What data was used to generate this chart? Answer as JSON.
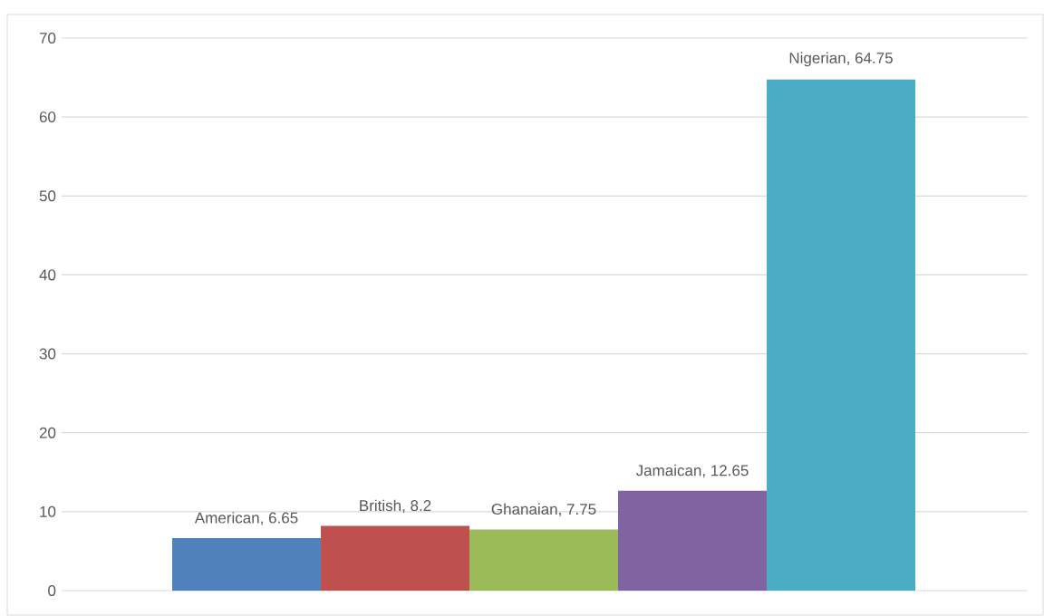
{
  "chart_data": {
    "type": "bar",
    "categories": [
      null,
      null,
      null,
      null,
      null
    ],
    "values": [
      6.65,
      8.2,
      7.75,
      12.65,
      64.75
    ],
    "colors": [
      "#4f81bd",
      "#c0504d",
      "#9bbb59",
      "#8064a2",
      "#4bacc6"
    ],
    "value_labels": [
      "American, 6.65",
      "British, 8.2",
      "Ghanaian, 7.75",
      "Jamaican, 12.65",
      "Nigerian, 64.75"
    ],
    "ylim": [
      0,
      70
    ],
    "yticks": [
      0,
      10,
      20,
      30,
      40,
      50,
      60,
      70
    ],
    "grid": "y"
  }
}
